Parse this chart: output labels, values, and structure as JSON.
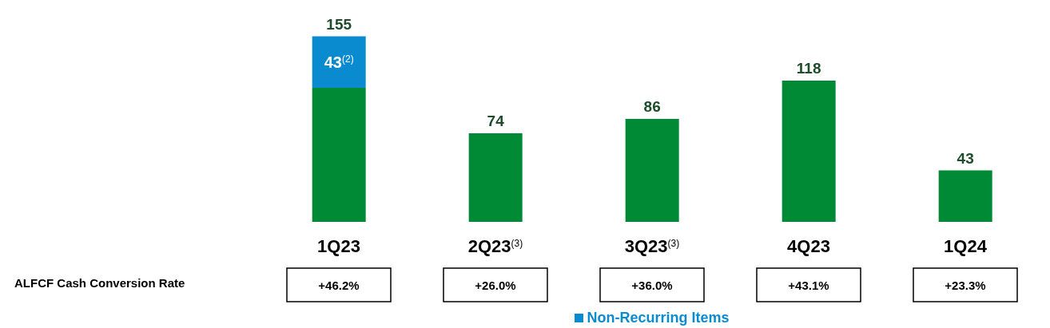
{
  "chart_data": {
    "type": "bar",
    "stacked": true,
    "categories": [
      "1Q23",
      "2Q23$^{(3)}$",
      "3Q23$^{(3)}$",
      "4Q23",
      "1Q24"
    ],
    "series": [
      {
        "color": "#008a36",
        "values": [
          112,
          74,
          86,
          118,
          43
        ]
      },
      {
        "name": "Non-Recurring Items",
        "color": "#0a8bd0",
        "values": [
          43,
          null,
          null,
          null,
          null
        ],
        "value_labels": [
          "43$^{(2)}$",
          null,
          null,
          null,
          null
        ]
      }
    ],
    "totals": [
      "155",
      "74",
      "86",
      "118",
      "43"
    ],
    "annotations": [
      "ALFCF Cash Conversion Rate",
      "+46.2%",
      "+26.0%",
      "+36.0%",
      "+43.1%",
      "+23.3%"
    ],
    "legend": "bottom",
    "grid": false
  }
}
